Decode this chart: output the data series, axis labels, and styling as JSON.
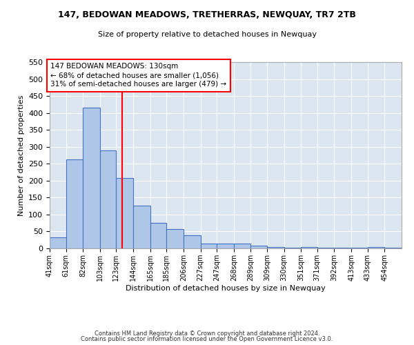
{
  "title": "147, BEDOWAN MEADOWS, TRETHERRAS, NEWQUAY, TR7 2TB",
  "subtitle": "Size of property relative to detached houses in Newquay",
  "xlabel": "Distribution of detached houses by size in Newquay",
  "ylabel": "Number of detached properties",
  "footer_line1": "Contains HM Land Registry data © Crown copyright and database right 2024.",
  "footer_line2": "Contains public sector information licensed under the Open Government Licence v3.0.",
  "annotation_line1": "147 BEDOWAN MEADOWS: 130sqm",
  "annotation_line2": "← 68% of detached houses are smaller (1,056)",
  "annotation_line3": "31% of semi-detached houses are larger (479) →",
  "bar_color": "#aec6e8",
  "bar_edge_color": "#4472c4",
  "background_color": "#dce6f1",
  "red_line_x": 130,
  "categories": [
    "41sqm",
    "61sqm",
    "82sqm",
    "103sqm",
    "123sqm",
    "144sqm",
    "165sqm",
    "185sqm",
    "206sqm",
    "227sqm",
    "247sqm",
    "268sqm",
    "289sqm",
    "309sqm",
    "330sqm",
    "351sqm",
    "371sqm",
    "392sqm",
    "413sqm",
    "433sqm",
    "454sqm"
  ],
  "bin_edges": [
    41,
    61,
    82,
    103,
    123,
    144,
    165,
    185,
    206,
    227,
    247,
    268,
    289,
    309,
    330,
    351,
    371,
    392,
    413,
    433,
    454,
    475
  ],
  "values": [
    32,
    262,
    415,
    290,
    207,
    127,
    75,
    58,
    38,
    15,
    15,
    15,
    8,
    5,
    2,
    5,
    3,
    2,
    2,
    5,
    2
  ],
  "ylim": [
    0,
    550
  ],
  "yticks": [
    0,
    50,
    100,
    150,
    200,
    250,
    300,
    350,
    400,
    450,
    500,
    550
  ]
}
